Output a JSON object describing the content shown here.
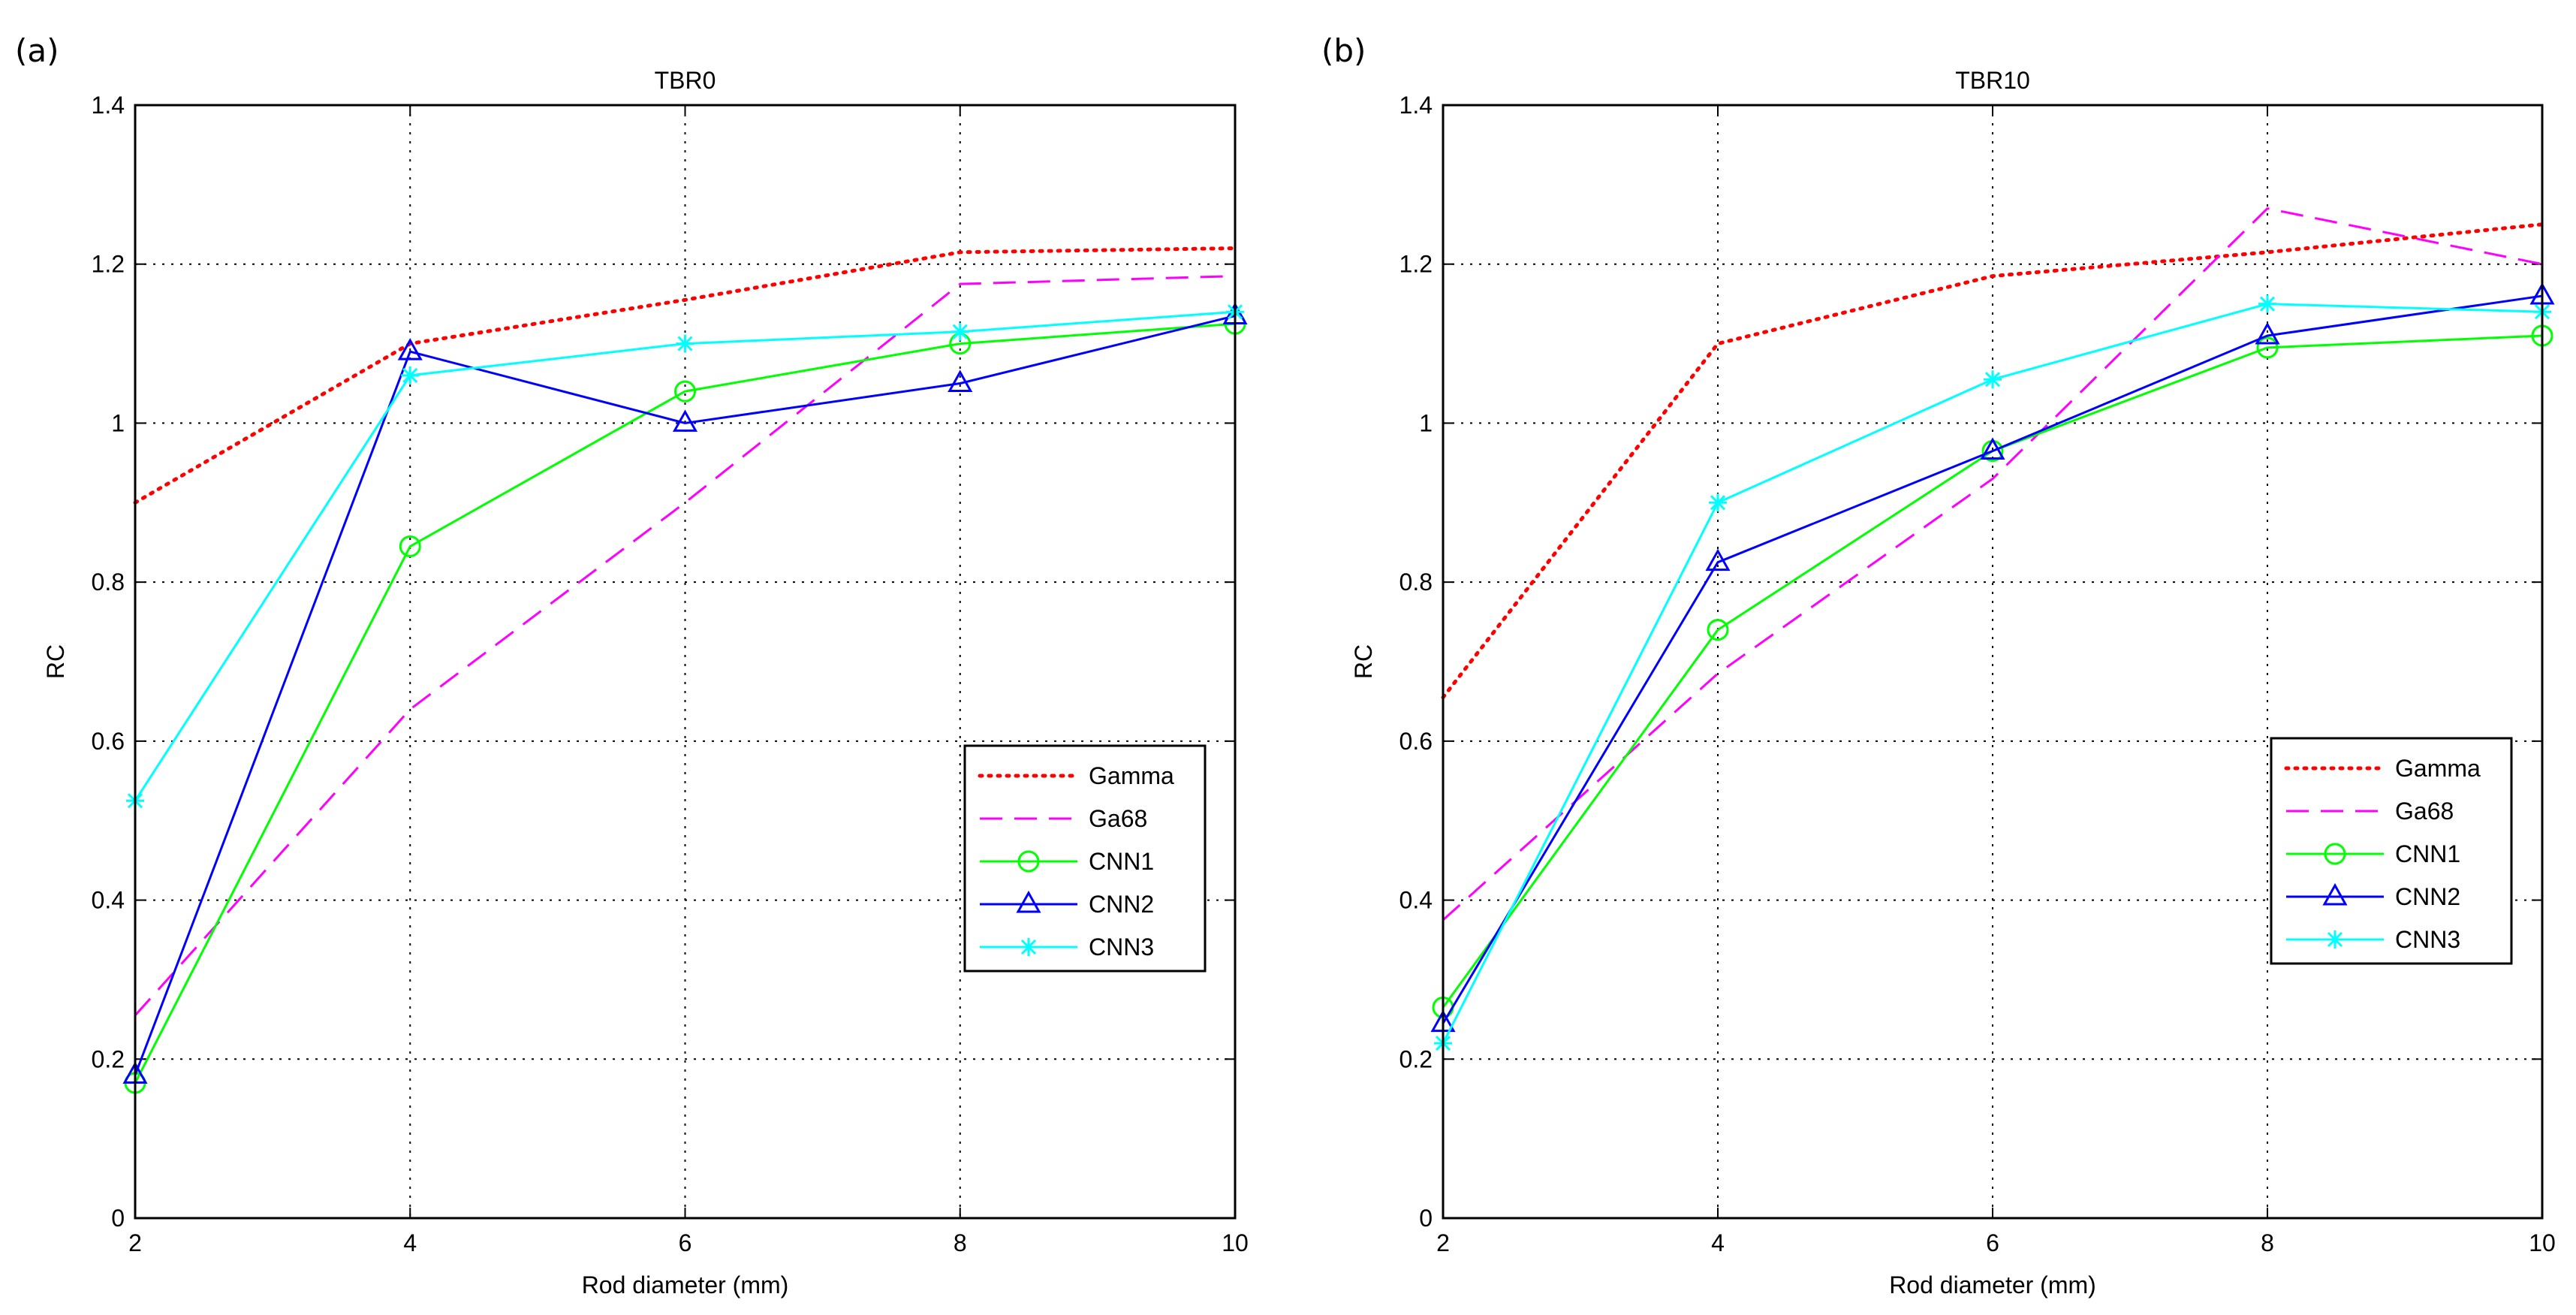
{
  "chart_data": [
    {
      "panel_label": "(a)",
      "type": "line",
      "title": "TBR0",
      "xlabel": "Rod diameter (mm)",
      "ylabel": "RC",
      "xlim": [
        2,
        10
      ],
      "ylim": [
        0,
        1.4
      ],
      "xticks": [
        2,
        4,
        6,
        8,
        10
      ],
      "xtick_labels": [
        "2",
        "4",
        "6",
        "8",
        "10"
      ],
      "yticks": [
        0,
        0.2,
        0.4,
        0.6,
        0.8,
        1,
        1.2,
        1.4
      ],
      "ytick_labels": [
        "0",
        "0.2",
        "0.4",
        "0.6",
        "0.8",
        "1",
        "1.2",
        "1.4"
      ],
      "grid": true,
      "legend_position": "lower-right",
      "x": [
        2,
        4,
        6,
        8,
        10
      ],
      "series": [
        {
          "name": "Gamma",
          "values": [
            0.9,
            1.1,
            1.155,
            1.215,
            1.22
          ]
        },
        {
          "name": "Ga68",
          "values": [
            0.255,
            0.64,
            0.9,
            1.175,
            1.185
          ]
        },
        {
          "name": "CNN1",
          "values": [
            0.17,
            0.845,
            1.04,
            1.1,
            1.125
          ]
        },
        {
          "name": "CNN2",
          "values": [
            0.18,
            1.09,
            1.0,
            1.05,
            1.135
          ]
        },
        {
          "name": "CNN3",
          "values": [
            0.525,
            1.06,
            1.1,
            1.115,
            1.14
          ]
        }
      ]
    },
    {
      "panel_label": "(b)",
      "type": "line",
      "title": "TBR10",
      "xlabel": "Rod diameter (mm)",
      "ylabel": "RC",
      "xlim": [
        2,
        10
      ],
      "ylim": [
        0,
        1.4
      ],
      "xticks": [
        2,
        4,
        6,
        8,
        10
      ],
      "xtick_labels": [
        "2",
        "4",
        "6",
        "8",
        "10"
      ],
      "yticks": [
        0,
        0.2,
        0.4,
        0.6,
        0.8,
        1,
        1.2,
        1.4
      ],
      "ytick_labels": [
        "0",
        "0.2",
        "0.4",
        "0.6",
        "0.8",
        "1",
        "1.2",
        "1.4"
      ],
      "grid": true,
      "legend_position": "lower-right",
      "x": [
        2,
        4,
        6,
        8,
        10
      ],
      "series": [
        {
          "name": "Gamma",
          "values": [
            0.655,
            1.1,
            1.185,
            1.215,
            1.25
          ]
        },
        {
          "name": "Ga68",
          "values": [
            0.375,
            0.685,
            0.93,
            1.27,
            1.2
          ]
        },
        {
          "name": "CNN1",
          "values": [
            0.265,
            0.74,
            0.965,
            1.095,
            1.11
          ]
        },
        {
          "name": "CNN2",
          "values": [
            0.245,
            0.825,
            0.965,
            1.11,
            1.16
          ]
        },
        {
          "name": "CNN3",
          "values": [
            0.22,
            0.9,
            1.055,
            1.15,
            1.14
          ]
        }
      ]
    }
  ],
  "series_styles": {
    "Gamma": {
      "color": "#ff0000",
      "dash": "dotted",
      "marker": "none"
    },
    "Ga68": {
      "color": "#ff00ff",
      "dash": "dashed",
      "marker": "none"
    },
    "CNN1": {
      "color": "#00ff00",
      "dash": "solid",
      "marker": "circle"
    },
    "CNN2": {
      "color": "#0000ff",
      "dash": "solid",
      "marker": "triangle"
    },
    "CNN3": {
      "color": "#00ffff",
      "dash": "solid",
      "marker": "star"
    }
  },
  "axis_color": "#000000",
  "grid_color": "#000000"
}
